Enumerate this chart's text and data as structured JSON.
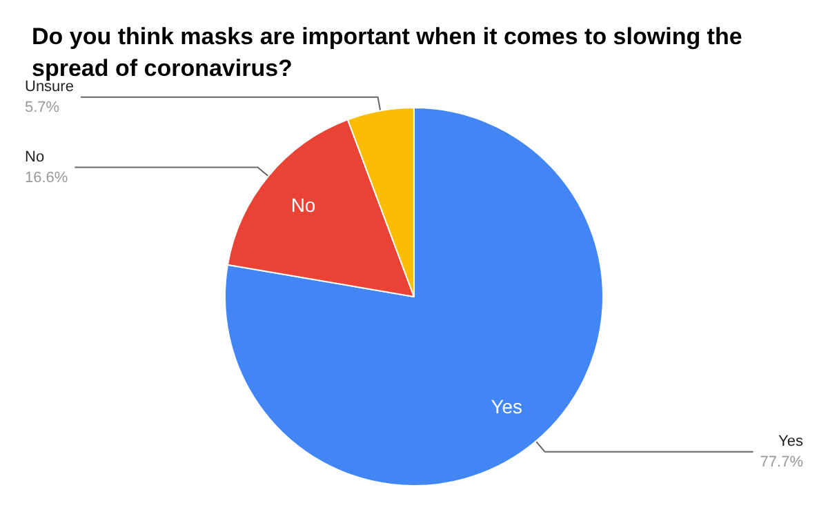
{
  "chart_data": {
    "type": "pie",
    "title": "Do you think masks are important when it comes to slowing the spread of coronavirus?",
    "categories": [
      "Yes",
      "No",
      "Unsure"
    ],
    "values": [
      77.7,
      16.6,
      5.7
    ],
    "colors": [
      "#4285f4",
      "#ea4335",
      "#fbbc04"
    ],
    "value_labels": [
      "77.7%",
      "16.6%",
      "5.7%"
    ],
    "legend": false
  }
}
